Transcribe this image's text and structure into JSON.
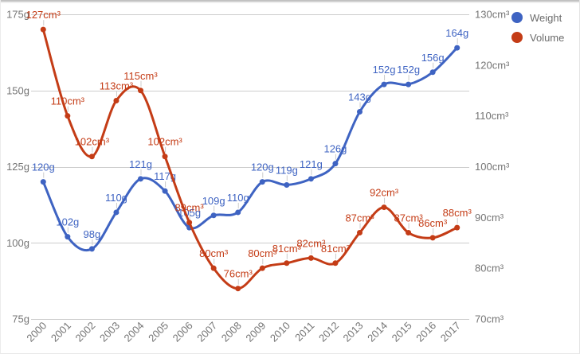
{
  "legend": {
    "items": [
      {
        "label": "Weight",
        "color": "#3E63C2"
      },
      {
        "label": "Volume",
        "color": "#C43C16"
      }
    ]
  },
  "chart_data": {
    "type": "line",
    "title": "",
    "x_categories": [
      "2000",
      "2001",
      "2002",
      "2003",
      "2004",
      "2005",
      "2006",
      "2007",
      "2008",
      "2009",
      "2010",
      "2011",
      "2012",
      "2013",
      "2014",
      "2015",
      "2016",
      "2017"
    ],
    "series": [
      {
        "name": "Weight",
        "unit": "g",
        "axis": "left",
        "color": "#3E63C2",
        "values": [
          120,
          102,
          98,
          110,
          121,
          117,
          105,
          109,
          110,
          120,
          119,
          121,
          126,
          143,
          152,
          152,
          156,
          164
        ],
        "annotations": [
          "120g",
          "102g",
          "98g",
          "110g",
          "121g",
          "117g",
          "105g",
          "109g",
          "110g",
          "120g",
          "119g",
          "121g",
          "126g",
          "143g",
          "152g",
          "152g",
          "156g",
          "164g"
        ]
      },
      {
        "name": "Volume",
        "unit": "cm³",
        "axis": "right",
        "color": "#C43C16",
        "values": [
          127,
          110,
          102,
          113,
          115,
          102,
          89,
          80,
          76,
          80,
          81,
          82,
          81,
          87,
          92,
          87,
          86,
          88
        ],
        "annotations": [
          "127cm³",
          "110cm³",
          "102cm³",
          "113cm³",
          "115cm³",
          "102cm³",
          "89cm³",
          "80cm³",
          "76cm³",
          "80cm³",
          "81cm³",
          "82cm³",
          "81cm³",
          "87cm³",
          "92cm³",
          "87cm³",
          "86cm³",
          "88cm³"
        ]
      }
    ],
    "left_axis": {
      "unit": "g",
      "min": 75,
      "max": 175,
      "tick_values": [
        175,
        150,
        125,
        100,
        75
      ],
      "tick_labels": [
        "175g",
        "150g",
        "125g",
        "100g",
        "75g"
      ]
    },
    "right_axis": {
      "unit": "cm³",
      "min": 70,
      "max": 130,
      "tick_values": [
        130,
        120,
        110,
        100,
        90,
        80,
        70
      ],
      "tick_labels": [
        "130cm³",
        "120cm³",
        "110cm³",
        "100cm³",
        "90cm³",
        "80cm³",
        "70cm³"
      ]
    },
    "grid": true,
    "legend_position": "top-right",
    "colors": {
      "axis_text": "#757575",
      "grid": "#cccccc",
      "stem": "#cccccc",
      "background": "#ffffff"
    }
  }
}
